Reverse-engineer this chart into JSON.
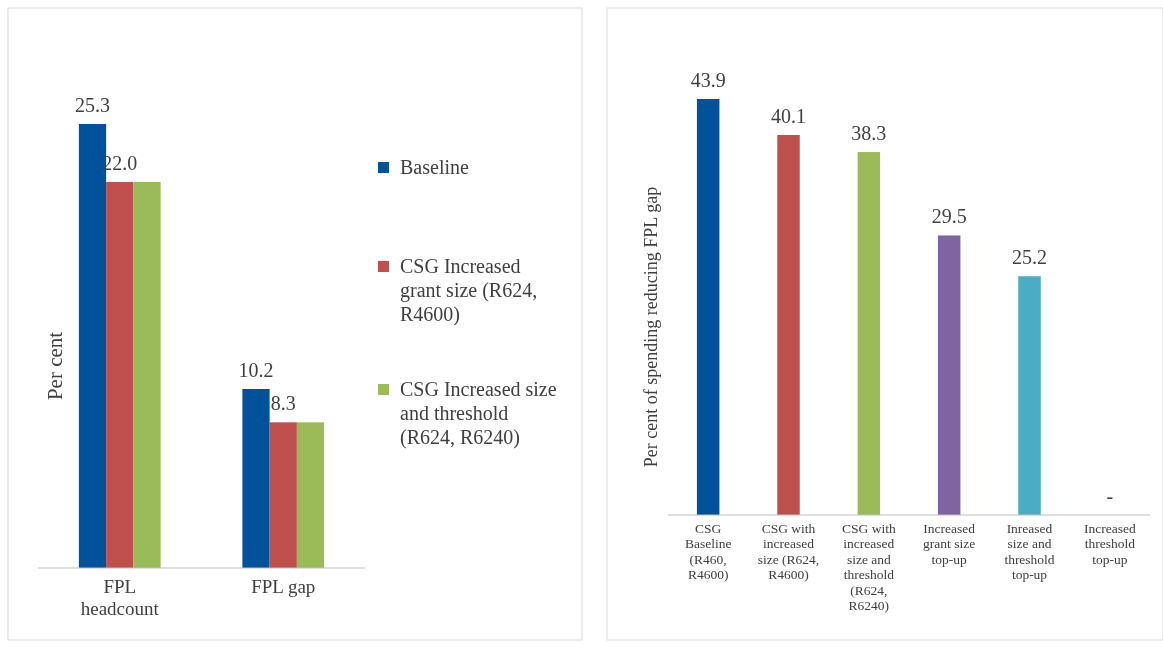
{
  "chart_data": [
    {
      "type": "bar",
      "ylabel": "Per cent",
      "categories": [
        "FPL headcount",
        "FPL gap"
      ],
      "legend": "right",
      "series": [
        {
          "name": "Baseline",
          "color": "#00539b",
          "values": [
            25.3,
            10.2
          ],
          "value_labels": [
            "25.3",
            "10.2"
          ]
        },
        {
          "name": "CSG Increased grant size (R624, R4600)",
          "color": "#c0504d",
          "values": [
            22.0,
            8.3
          ],
          "value_labels": [
            "22.0",
            "8.3"
          ]
        },
        {
          "name": "CSG Increased size and threshold (R624, R6240)",
          "color": "#9bbb59",
          "values": [
            22.0,
            8.3
          ],
          "value_labels": [
            null,
            null
          ]
        }
      ]
    },
    {
      "type": "bar",
      "ylabel": "Per cent of spending reducing FPL gap",
      "categories": [
        "CSG Baseline (R460, R4600)",
        "CSG with increased size (R624, R4600)",
        "CSG with increased size and threshold (R624, R6240)",
        "Increased grant size top-up",
        "Inreased size and threshold top-up",
        "Increased threshold top-up"
      ],
      "values": [
        43.9,
        40.1,
        38.3,
        29.5,
        25.2,
        null
      ],
      "colors": [
        "#00539b",
        "#c0504d",
        "#9bbb59",
        "#8064a2",
        "#4bacc6",
        "#f79646"
      ],
      "value_labels": [
        "43.9",
        "40.1",
        "38.3",
        "29.5",
        "25.2",
        "-"
      ]
    }
  ]
}
